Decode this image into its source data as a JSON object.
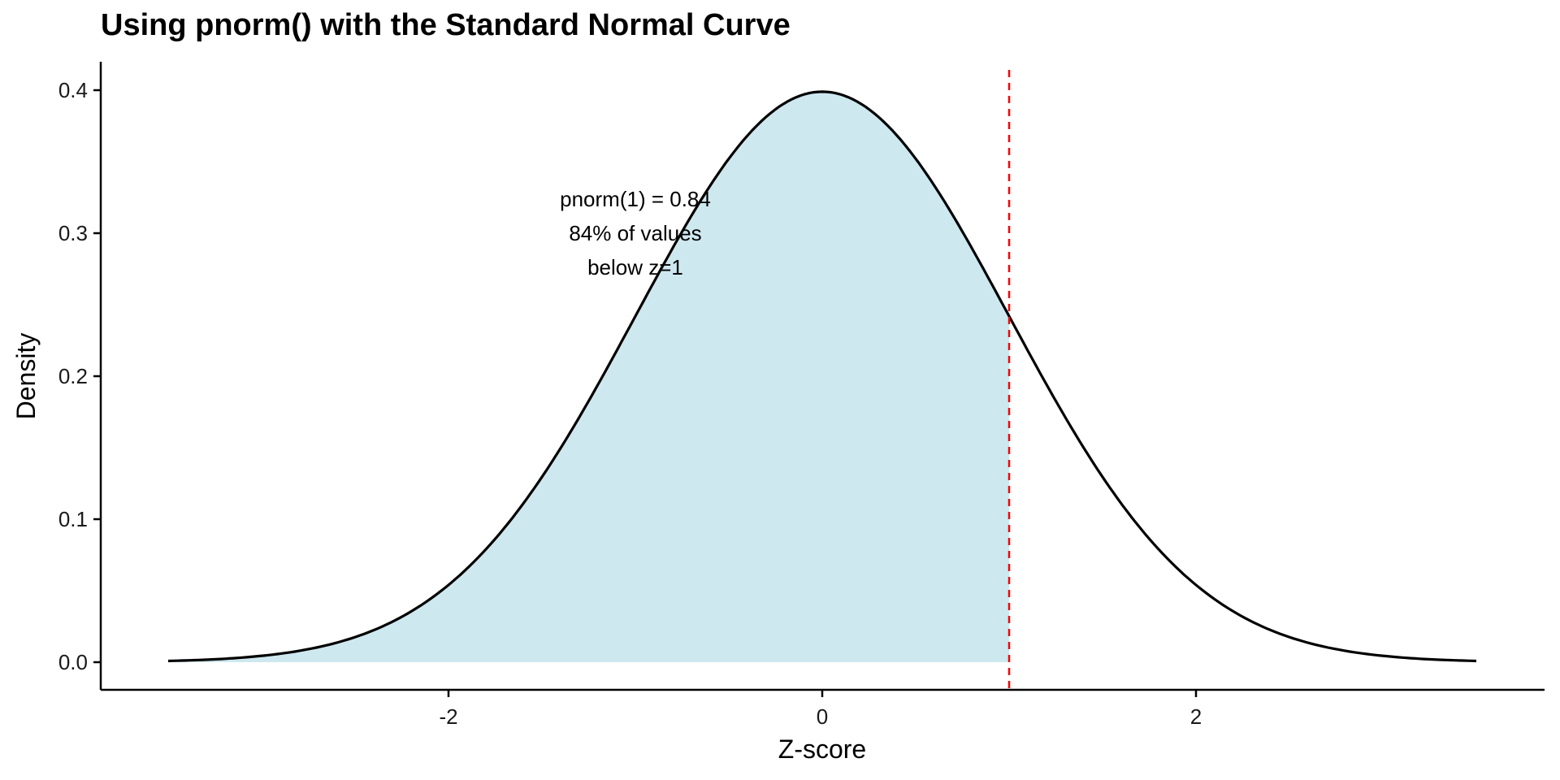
{
  "chart_data": {
    "type": "area",
    "title": "Using pnorm() with the Standard Normal Curve",
    "xlabel": "Z-score",
    "ylabel": "Density",
    "xlim": [
      -3.5,
      3.5
    ],
    "ylim": [
      0,
      0.4
    ],
    "x_ticks": [
      -2,
      0,
      2
    ],
    "x_tick_labels": [
      "-2",
      "0",
      "2"
    ],
    "y_ticks": [
      0.0,
      0.1,
      0.2,
      0.3,
      0.4
    ],
    "y_tick_labels": [
      "0.0",
      "0.1",
      "0.2",
      "0.3",
      "0.4"
    ],
    "grid": false,
    "legend": "none",
    "series": [
      {
        "kind": "density-line",
        "x": [
          -3.5,
          -3.25,
          -3.0,
          -2.75,
          -2.5,
          -2.25,
          -2.0,
          -1.75,
          -1.5,
          -1.25,
          -1.0,
          -0.75,
          -0.5,
          -0.25,
          0.0,
          0.25,
          0.5,
          0.75,
          1.0,
          1.25,
          1.5,
          1.75,
          2.0,
          2.25,
          2.5,
          2.75,
          3.0,
          3.25,
          3.5
        ],
        "y": [
          0.0009,
          0.002,
          0.0044,
          0.0091,
          0.0175,
          0.0317,
          0.054,
          0.0863,
          0.1295,
          0.1826,
          0.242,
          0.3011,
          0.3521,
          0.3867,
          0.3989,
          0.3867,
          0.3521,
          0.3011,
          0.242,
          0.1826,
          0.1295,
          0.0863,
          0.054,
          0.0317,
          0.0175,
          0.0091,
          0.0044,
          0.002,
          0.0009
        ]
      },
      {
        "kind": "shaded-area",
        "from": -3.5,
        "to": 1
      }
    ],
    "vline": {
      "x": 1,
      "color": "#ff0000",
      "style": "dashed"
    },
    "annotation": {
      "x": -1,
      "y": 0.3,
      "lines": [
        "pnorm(1) = 0.84",
        "84% of values",
        "below z=1"
      ]
    },
    "colors": {
      "fill": "#add8e6",
      "line": "#000000",
      "vline": "#ff0000"
    }
  }
}
